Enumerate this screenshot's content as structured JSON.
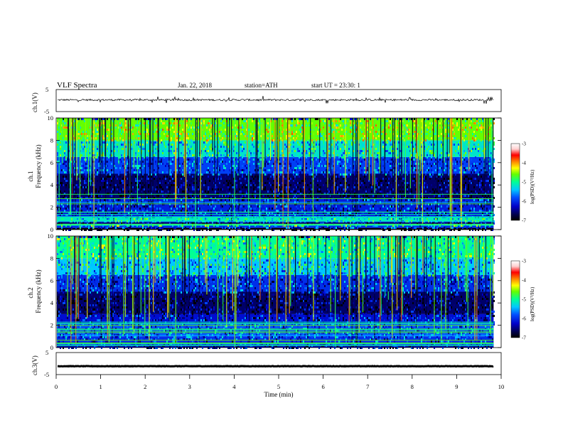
{
  "header": {
    "title": "VLF Spectra",
    "date": "Jan. 22, 2018",
    "station": "station=ATH",
    "start_ut": "start UT = 23:30: 1"
  },
  "colors": {
    "waveform": "#000000",
    "axis": "#000000",
    "colormap": [
      "#000000",
      "#000050",
      "#0000c8",
      "#0050ff",
      "#00c8ff",
      "#00ff96",
      "#64ff00",
      "#ffff00",
      "#ff8c00",
      "#ff0000",
      "#ffd2d2",
      "#ffffff"
    ]
  },
  "chart_data": [
    {
      "type": "line",
      "name": "ch1-waveform",
      "ylabel": "ch.1(V)",
      "ylim": [
        -5,
        5
      ],
      "yticks": [
        "5",
        "-5"
      ],
      "xlim": [
        0,
        10
      ],
      "level": 0.3,
      "amplitude": 0.4
    },
    {
      "type": "heatmap",
      "name": "ch1-spectrogram",
      "ylabel_top": "ch.1",
      "ylabel": "Frequency (kHz)",
      "ylim": [
        0,
        10
      ],
      "yticks": [
        "0",
        "2",
        "4",
        "6",
        "8",
        "10"
      ],
      "xlim": [
        0,
        10
      ],
      "data_end_min": 9.83,
      "colorbar": {
        "label": "log(PSD)(V²/Hz)",
        "range": [
          -7,
          -3
        ],
        "ticks": [
          "-3",
          "-4",
          "-5",
          "-6",
          "-7"
        ]
      },
      "bands": [
        {
          "from": 0,
          "to": 0.15,
          "value": -7
        },
        {
          "from": 0.15,
          "to": 0.35,
          "value": -6.0
        },
        {
          "from": 0.35,
          "to": 0.5,
          "value": -5.0
        },
        {
          "from": 0.5,
          "to": 0.75,
          "value": -6.5
        },
        {
          "from": 0.75,
          "to": 1.1,
          "value": -5.2
        },
        {
          "from": 1.1,
          "to": 2.8,
          "value": -6.1
        },
        {
          "from": 2.8,
          "to": 5.0,
          "value": -6.6
        },
        {
          "from": 5.0,
          "to": 6.5,
          "value": -5.9
        },
        {
          "from": 6.5,
          "to": 8.0,
          "value": -5.2
        },
        {
          "from": 8.0,
          "to": 10.0,
          "value": -4.6
        }
      ]
    },
    {
      "type": "heatmap",
      "name": "ch2-spectrogram",
      "ylabel_top": "ch.2",
      "ylabel": "Frequency (kHz)",
      "ylim": [
        0,
        10
      ],
      "yticks": [
        "0",
        "2",
        "4",
        "6",
        "8",
        "10"
      ],
      "xlim": [
        0,
        10
      ],
      "data_end_min": 9.83,
      "colorbar": {
        "label": "log(PSD)(V²/Hz)",
        "range": [
          -7,
          -3
        ],
        "ticks": [
          "-3",
          "-4",
          "-5",
          "-6",
          "-7"
        ]
      },
      "bands": [
        {
          "from": 0,
          "to": 0.3,
          "value": -6.4
        },
        {
          "from": 0.3,
          "to": 1.0,
          "value": -6.0
        },
        {
          "from": 1.0,
          "to": 2.2,
          "value": -5.8
        },
        {
          "from": 2.2,
          "to": 3.0,
          "value": -6.2
        },
        {
          "from": 3.0,
          "to": 5.0,
          "value": -6.6
        },
        {
          "from": 5.0,
          "to": 6.5,
          "value": -6.0
        },
        {
          "from": 6.5,
          "to": 8.0,
          "value": -5.4
        },
        {
          "from": 8.0,
          "to": 10.0,
          "value": -5.0
        }
      ]
    },
    {
      "type": "line",
      "name": "ch3-waveform",
      "ylabel": "ch.3(V)",
      "ylim": [
        -5,
        5
      ],
      "yticks": [
        "5",
        "-5"
      ],
      "xlim": [
        0,
        10
      ],
      "level": -1.2,
      "amplitude": 0.1,
      "xlabel": "Time (min)",
      "xticks": [
        "0",
        "1",
        "2",
        "3",
        "4",
        "5",
        "6",
        "7",
        "8",
        "9",
        "10"
      ]
    }
  ]
}
